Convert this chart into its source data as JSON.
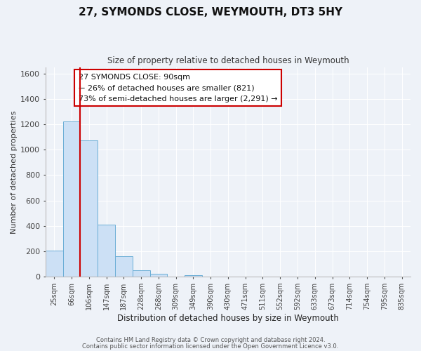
{
  "title": "27, SYMONDS CLOSE, WEYMOUTH, DT3 5HY",
  "subtitle": "Size of property relative to detached houses in Weymouth",
  "xlabel": "Distribution of detached houses by size in Weymouth",
  "ylabel": "Number of detached properties",
  "bar_labels": [
    "25sqm",
    "66sqm",
    "106sqm",
    "147sqm",
    "187sqm",
    "228sqm",
    "268sqm",
    "309sqm",
    "349sqm",
    "390sqm",
    "430sqm",
    "471sqm",
    "511sqm",
    "552sqm",
    "592sqm",
    "633sqm",
    "673sqm",
    "714sqm",
    "754sqm",
    "795sqm",
    "835sqm"
  ],
  "bar_values": [
    205,
    1225,
    1075,
    410,
    160,
    50,
    25,
    0,
    15,
    0,
    0,
    0,
    0,
    0,
    0,
    0,
    0,
    0,
    0,
    0,
    0
  ],
  "bar_color": "#cce0f5",
  "bar_edge_color": "#6baed6",
  "ylim": [
    0,
    1650
  ],
  "yticks": [
    0,
    200,
    400,
    600,
    800,
    1000,
    1200,
    1400,
    1600
  ],
  "vline_color": "#cc0000",
  "annotation_title": "27 SYMONDS CLOSE: 90sqm",
  "annotation_line1": "← 26% of detached houses are smaller (821)",
  "annotation_line2": "73% of semi-detached houses are larger (2,291) →",
  "annotation_box_color": "#ffffff",
  "annotation_box_edge": "#cc0000",
  "background_color": "#eef2f8",
  "grid_color": "#ffffff",
  "footer1": "Contains HM Land Registry data © Crown copyright and database right 2024.",
  "footer2": "Contains public sector information licensed under the Open Government Licence v3.0."
}
